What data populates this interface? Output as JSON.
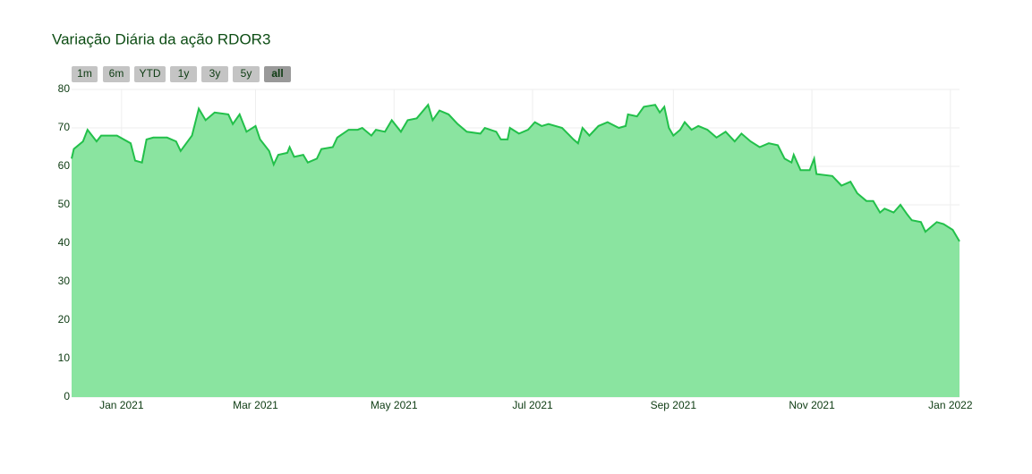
{
  "chart_data": {
    "type": "area",
    "title": "Variação Diária da ação RDOR3",
    "range_buttons": [
      "1m",
      "6m",
      "YTD",
      "1y",
      "3y",
      "5y",
      "all"
    ],
    "active_button": "all",
    "color": "#22c04a",
    "fill_color": "#8ae4a0",
    "grid": true,
    "xlim": [
      "2020-12-10",
      "2022-01-05"
    ],
    "xticks": [
      {
        "value": "2021-01-01",
        "label": "Jan 2021"
      },
      {
        "value": "2021-03-01",
        "label": "Mar 2021"
      },
      {
        "value": "2021-05-01",
        "label": "May 2021"
      },
      {
        "value": "2021-07-01",
        "label": "Jul 2021"
      },
      {
        "value": "2021-09-01",
        "label": "Sep 2021"
      },
      {
        "value": "2021-11-01",
        "label": "Nov 2021"
      },
      {
        "value": "2022-01-01",
        "label": "Jan 2022"
      }
    ],
    "ylim": [
      0,
      80
    ],
    "yticks": [
      0,
      10,
      20,
      30,
      40,
      50,
      60,
      70,
      80
    ],
    "x": [
      "2020-12-10",
      "2020-12-11",
      "2020-12-15",
      "2020-12-17",
      "2020-12-21",
      "2020-12-23",
      "2020-12-30",
      "2021-01-05",
      "2021-01-07",
      "2021-01-10",
      "2021-01-12",
      "2021-01-15",
      "2021-01-21",
      "2021-01-25",
      "2021-01-27",
      "2021-02-01",
      "2021-02-04",
      "2021-02-07",
      "2021-02-11",
      "2021-02-17",
      "2021-02-19",
      "2021-02-22",
      "2021-02-25",
      "2021-03-01",
      "2021-03-03",
      "2021-03-07",
      "2021-03-09",
      "2021-03-11",
      "2021-03-15",
      "2021-03-16",
      "2021-03-18",
      "2021-03-22",
      "2021-03-24",
      "2021-03-28",
      "2021-03-30",
      "2021-04-04",
      "2021-04-06",
      "2021-04-11",
      "2021-04-15",
      "2021-04-17",
      "2021-04-21",
      "2021-04-23",
      "2021-04-27",
      "2021-04-30",
      "2021-05-04",
      "2021-05-07",
      "2021-05-11",
      "2021-05-16",
      "2021-05-18",
      "2021-05-21",
      "2021-05-25",
      "2021-05-29",
      "2021-06-02",
      "2021-06-08",
      "2021-06-10",
      "2021-06-15",
      "2021-06-17",
      "2021-06-20",
      "2021-06-21",
      "2021-06-25",
      "2021-06-29",
      "2021-07-02",
      "2021-07-05",
      "2021-07-08",
      "2021-07-14",
      "2021-07-19",
      "2021-07-21",
      "2021-07-23",
      "2021-07-26",
      "2021-07-30",
      "2021-08-03",
      "2021-08-08",
      "2021-08-11",
      "2021-08-12",
      "2021-08-16",
      "2021-08-19",
      "2021-08-24",
      "2021-08-26",
      "2021-08-28",
      "2021-08-30",
      "2021-09-01",
      "2021-09-04",
      "2021-09-06",
      "2021-09-09",
      "2021-09-12",
      "2021-09-16",
      "2021-09-20",
      "2021-09-24",
      "2021-09-28",
      "2021-10-01",
      "2021-10-05",
      "2021-10-09",
      "2021-10-13",
      "2021-10-17",
      "2021-10-20",
      "2021-10-23",
      "2021-10-24",
      "2021-10-27",
      "2021-10-31",
      "2021-11-02",
      "2021-11-03",
      "2021-11-10",
      "2021-11-14",
      "2021-11-18",
      "2021-11-21",
      "2021-11-25",
      "2021-11-28",
      "2021-12-01",
      "2021-12-03",
      "2021-12-07",
      "2021-12-10",
      "2021-12-13",
      "2021-12-15",
      "2021-12-19",
      "2021-12-21",
      "2021-12-26",
      "2021-12-29",
      "2022-01-02",
      "2022-01-05"
    ],
    "values": [
      62,
      64.5,
      66.5,
      69.5,
      66.5,
      68,
      68,
      66,
      61.5,
      61,
      67,
      67.5,
      67.5,
      66.5,
      64,
      68,
      75,
      72,
      74,
      73.5,
      71,
      73.5,
      69,
      70.5,
      67,
      64,
      60.5,
      63,
      63.5,
      65,
      62.5,
      63,
      61,
      62,
      64.5,
      65,
      67.5,
      69.5,
      69.5,
      70,
      68,
      69.5,
      69,
      72,
      69,
      72,
      72.5,
      76,
      72,
      74.5,
      73.5,
      71,
      69,
      68.5,
      70,
      69,
      67,
      67,
      70,
      68.5,
      69.5,
      71.5,
      70.5,
      71,
      70,
      67,
      66,
      70,
      68,
      70.5,
      71.5,
      70,
      70.5,
      73.5,
      73,
      75.5,
      76,
      74,
      75.5,
      70,
      68,
      69.5,
      71.5,
      69.5,
      70.5,
      69.5,
      67.5,
      69,
      66.5,
      68.5,
      66.5,
      65,
      66,
      65.5,
      62,
      61,
      63,
      59,
      59,
      62,
      58,
      57.5,
      55,
      56,
      53,
      51,
      51,
      48,
      49,
      48,
      50,
      47.5,
      46,
      45.5,
      43,
      45.5,
      45,
      43.5,
      40.5
    ]
  }
}
